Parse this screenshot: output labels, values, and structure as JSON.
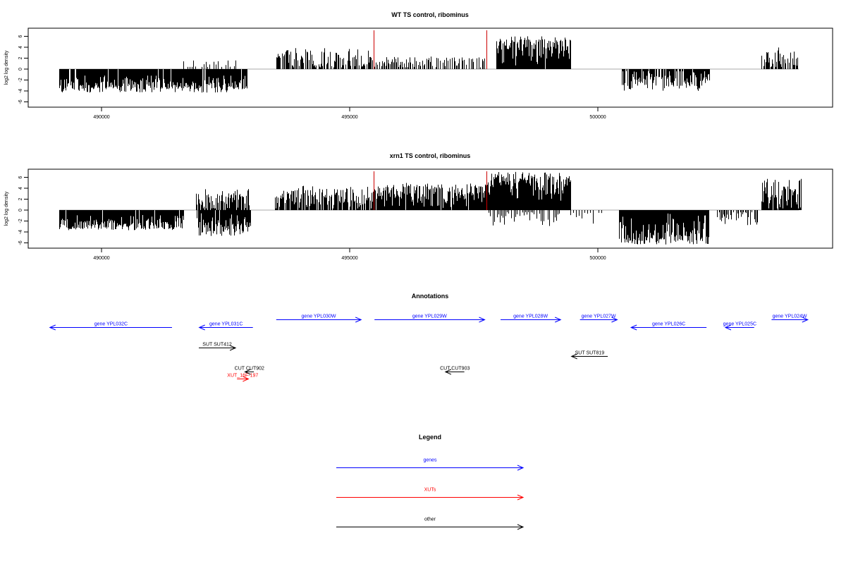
{
  "chart_data": [
    {
      "type": "bar",
      "title": "WT TS control, ribominus",
      "ylabel": "log2 log density",
      "xlim": [
        488200,
        504700
      ],
      "ylim": [
        -7,
        7.5
      ],
      "y_ticks": [
        -6,
        -4,
        -2,
        0,
        2,
        4,
        6
      ],
      "x_ticks": [
        490000,
        495000,
        500000
      ],
      "grid": false,
      "segments": [
        {
          "x0": 489150,
          "x1": 492930,
          "min": -4.3,
          "max": -1.2,
          "mean": -2.3,
          "density": 2.6
        },
        {
          "x0": 491650,
          "x1": 492750,
          "min": 0.4,
          "max": 2.1,
          "mean": 0.9,
          "density": 0.35
        },
        {
          "x0": 493500,
          "x1": 495450,
          "min": 0.3,
          "max": 3.9,
          "mean": 1.8,
          "density": 0.9
        },
        {
          "x0": 495460,
          "x1": 497730,
          "min": 0.3,
          "max": 2.4,
          "mean": 1.2,
          "density": 0.65
        },
        {
          "x0": 497950,
          "x1": 499450,
          "min": 0.4,
          "max": 6.0,
          "mean": 3.0,
          "density": 3.0
        },
        {
          "x0": 500480,
          "x1": 502250,
          "min": -4.0,
          "max": -0.4,
          "mean": -1.6,
          "density": 1.4
        },
        {
          "x0": 503300,
          "x1": 504050,
          "min": 0.4,
          "max": 4.0,
          "mean": 1.6,
          "density": 0.9
        }
      ],
      "markers": [
        {
          "x": 495480,
          "color": "#cc0000"
        },
        {
          "x": 497750,
          "color": "#cc0000"
        }
      ]
    },
    {
      "type": "bar",
      "title": "xrn1 TS control, ribominus",
      "ylabel": "log2 log density",
      "xlim": [
        488200,
        504700
      ],
      "ylim": [
        -7,
        7.5
      ],
      "y_ticks": [
        -6,
        -4,
        -2,
        0,
        2,
        4,
        6
      ],
      "x_ticks": [
        490000,
        495000,
        500000
      ],
      "grid": false,
      "segments": [
        {
          "x0": 489150,
          "x1": 491650,
          "min": -3.7,
          "max": -0.6,
          "mean": -2.1,
          "density": 2.6
        },
        {
          "x0": 491900,
          "x1": 493000,
          "min": -4.8,
          "max": -0.6,
          "mean": -2.2,
          "density": 2.4
        },
        {
          "x0": 491900,
          "x1": 493000,
          "min": 0.3,
          "max": 4.0,
          "mean": 1.4,
          "density": 1.4
        },
        {
          "x0": 493500,
          "x1": 495480,
          "min": 0.3,
          "max": 4.5,
          "mean": 2.0,
          "density": 1.3
        },
        {
          "x0": 495480,
          "x1": 497750,
          "min": 0.4,
          "max": 5.0,
          "mean": 2.3,
          "density": 2.6
        },
        {
          "x0": 497770,
          "x1": 499450,
          "min": 0.5,
          "max": 7.0,
          "mean": 3.2,
          "density": 3.4
        },
        {
          "x0": 497800,
          "x1": 499300,
          "min": -3.0,
          "max": -0.4,
          "mean": -1.1,
          "density": 0.5
        },
        {
          "x0": 500420,
          "x1": 502230,
          "min": -6.3,
          "max": -0.5,
          "mean": -3.0,
          "density": 3.4
        },
        {
          "x0": 502400,
          "x1": 503250,
          "min": -2.8,
          "max": -0.4,
          "mean": -1.2,
          "density": 0.7
        },
        {
          "x0": 503300,
          "x1": 504100,
          "min": 0.3,
          "max": 5.8,
          "mean": 2.0,
          "density": 2.2
        },
        {
          "x0": 499450,
          "x1": 500100,
          "min": -3.2,
          "max": -0.5,
          "mean": -1.4,
          "density": 0.25
        }
      ],
      "markers": [
        {
          "x": 495480,
          "color": "#cc0000"
        },
        {
          "x": 497750,
          "color": "#cc0000"
        }
      ]
    }
  ],
  "annotations": {
    "title": "Annotations",
    "items": [
      {
        "label": "gene YPL032C",
        "start": 491420,
        "end": 488960,
        "row": 1,
        "color": "#0000ff"
      },
      {
        "label": "gene YPL031C",
        "start": 493050,
        "end": 491970,
        "row": 1,
        "color": "#0000ff"
      },
      {
        "label": "gene YPL030W",
        "start": 493520,
        "end": 495230,
        "row": 0,
        "color": "#0000ff"
      },
      {
        "label": "gene YPL029W",
        "start": 495500,
        "end": 497720,
        "row": 0,
        "color": "#0000ff"
      },
      {
        "label": "gene YPL028W",
        "start": 498040,
        "end": 499250,
        "row": 0,
        "color": "#0000ff"
      },
      {
        "label": "gene YPL027W",
        "start": 499640,
        "end": 500390,
        "row": 0,
        "color": "#0000ff"
      },
      {
        "label": "gene YPL026C",
        "start": 502190,
        "end": 500670,
        "row": 1,
        "color": "#0000ff"
      },
      {
        "label": "gene YPL025C",
        "start": 503150,
        "end": 502570,
        "row": 1,
        "color": "#0000ff"
      },
      {
        "label": "gene YPL024W",
        "start": 503500,
        "end": 504230,
        "row": 0,
        "color": "#0000ff"
      },
      {
        "label": "SUT SUT412",
        "start": 491960,
        "end": 492700,
        "row": 3,
        "color": "#000000"
      },
      {
        "label": "SUT SUT819",
        "start": 500200,
        "end": 499470,
        "row": 4,
        "color": "#000000"
      },
      {
        "label": "CUT CUT902",
        "start": 493070,
        "end": 492890,
        "row": 5,
        "color": "#000000"
      },
      {
        "label": "CUT CUT903",
        "start": 497310,
        "end": 496930,
        "row": 5,
        "color": "#000000"
      },
      {
        "label": "XUT_16F-197",
        "start": 492730,
        "end": 492960,
        "row": 6,
        "color": "#ff0000"
      }
    ]
  },
  "legend": {
    "title": "Legend",
    "items": [
      {
        "label": "genes",
        "color": "#0000ff"
      },
      {
        "label": "XUTs",
        "color": "#ff0000"
      },
      {
        "label": "other",
        "color": "#000000"
      }
    ]
  }
}
